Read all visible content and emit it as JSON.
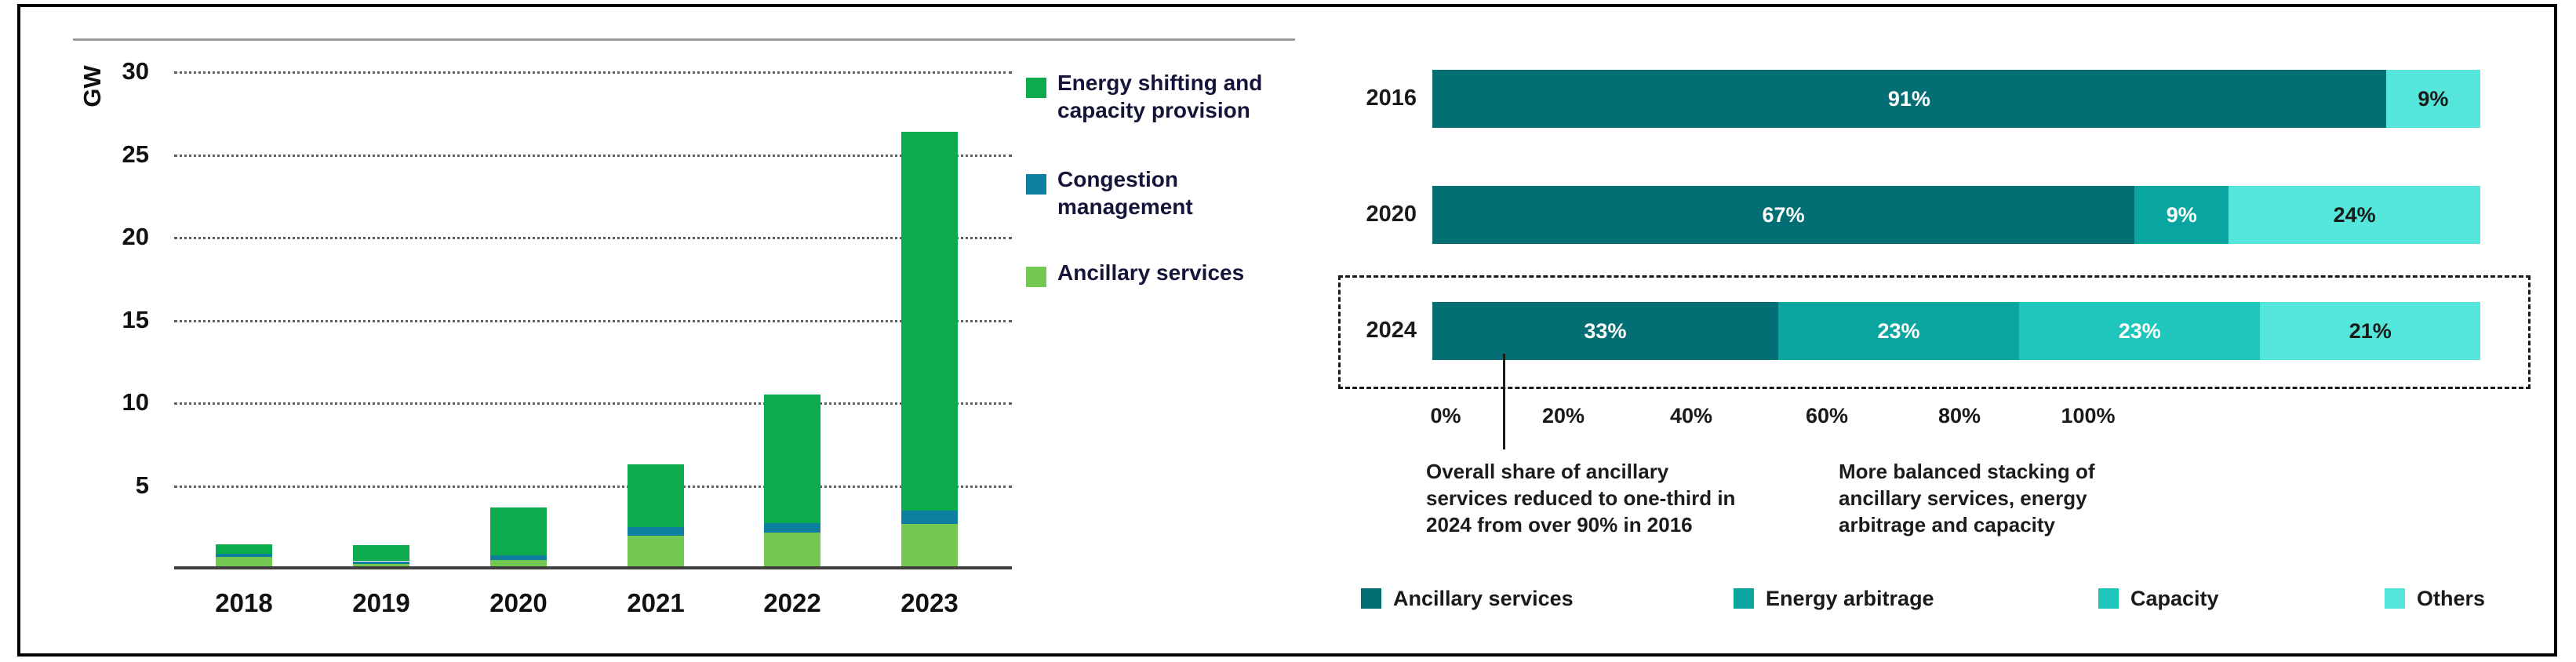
{
  "colors": {
    "energy_shifting": "#0cac4c",
    "congestion": "#0e7f9f",
    "ancillary_left": "#72c850",
    "ancillary_services": "#046e75",
    "energy_arbitrage": "#0ba5a0",
    "capacity": "#1fc6bb",
    "others": "#54e6da",
    "grid_dots": "#5f5f5f",
    "axis_line": "#3f3f3f",
    "top_rule": "#9a9a9a",
    "dashed_box": "#1a1a1a",
    "dark_text": "#1a1a1a",
    "white_text": "#ffffff",
    "frame_border": "#000000"
  },
  "left_chart": {
    "y_axis_label": "GW",
    "legend": [
      {
        "label": "Energy shifting and\ncapacity provision",
        "color_key": "energy_shifting"
      },
      {
        "label": "Congestion\nmanagement",
        "color_key": "congestion"
      },
      {
        "label": "Ancillary services",
        "color_key": "ancillary_left"
      }
    ]
  },
  "right_chart": {
    "annotations": [
      "Overall share of ancillary\nservices reduced to one-third in\n2024 from over 90% in 2016",
      "More balanced stacking of\nancillary services, energy\narbitrage and capacity"
    ],
    "legend": [
      {
        "label": "Ancillary services",
        "color_key": "ancillary_services"
      },
      {
        "label": "Energy arbitrage",
        "color_key": "energy_arbitrage"
      },
      {
        "label": "Capacity",
        "color_key": "capacity"
      },
      {
        "label": "Others",
        "color_key": "others"
      }
    ]
  },
  "chart_data": [
    {
      "type": "bar",
      "orientation": "vertical",
      "stacked": true,
      "ylabel": "GW",
      "categories": [
        "2018",
        "2019",
        "2020",
        "2021",
        "2022",
        "2023"
      ],
      "series": [
        {
          "name": "Ancillary services",
          "color_key": "ancillary_left",
          "values": [
            0.7,
            0.3,
            0.5,
            2.0,
            2.2,
            2.7
          ]
        },
        {
          "name": "Congestion management",
          "color_key": "congestion",
          "values": [
            0.2,
            0.15,
            0.3,
            0.5,
            0.55,
            0.8
          ]
        },
        {
          "name": "Energy shifting and capacity provision",
          "color_key": "energy_shifting",
          "values": [
            0.55,
            0.95,
            2.9,
            3.8,
            7.75,
            22.9
          ]
        }
      ],
      "totals_gw": [
        1.45,
        1.4,
        3.7,
        6.3,
        10.5,
        26.4
      ],
      "yticks": [
        5,
        10,
        15,
        20,
        25,
        30
      ],
      "ylim": [
        0,
        32
      ],
      "grid": "dotted-horizontal",
      "legend_position": "right"
    },
    {
      "type": "bar",
      "orientation": "horizontal",
      "stacked": true,
      "unit": "%",
      "categories": [
        "2016",
        "2020",
        "2024"
      ],
      "series": [
        {
          "name": "Ancillary services",
          "color_key": "ancillary_services",
          "values": [
            91,
            67,
            33
          ]
        },
        {
          "name": "Energy arbitrage",
          "color_key": "energy_arbitrage",
          "values": [
            0,
            9,
            23
          ]
        },
        {
          "name": "Capacity",
          "color_key": "capacity",
          "values": [
            0,
            0,
            23
          ]
        },
        {
          "name": "Others",
          "color_key": "others",
          "values": [
            9,
            24,
            21
          ]
        }
      ],
      "xticks": [
        "0%",
        "20%",
        "40%",
        "60%",
        "80%",
        "100%"
      ],
      "xlim": [
        0,
        100
      ],
      "highlighted_category": "2024",
      "legend_position": "bottom"
    }
  ]
}
